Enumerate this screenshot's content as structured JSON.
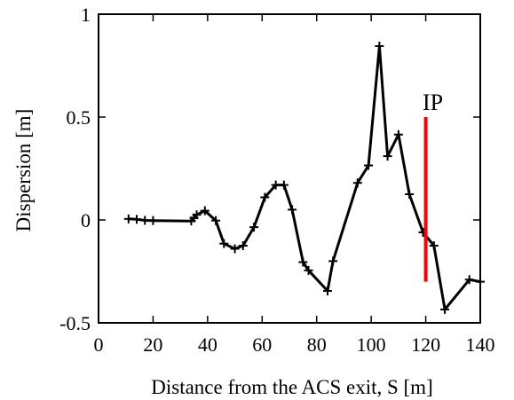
{
  "chart_data": {
    "type": "line",
    "xlabel": "Distance from the ACS exit, S [m]",
    "ylabel": "Dispersion [m]",
    "xlim": [
      0,
      140
    ],
    "ylim": [
      -0.5,
      1
    ],
    "xticks": [
      0,
      20,
      40,
      60,
      80,
      100,
      120,
      140
    ],
    "yticks": [
      -0.5,
      0,
      0.5,
      1
    ],
    "ytick_labels": [
      "-0.5",
      "0",
      "0.5",
      "1"
    ],
    "grid": false,
    "legend": "none",
    "series": [
      {
        "color": "#000000",
        "marker": "plus",
        "x": [
          11,
          14,
          17,
          20,
          34,
          35,
          36,
          39,
          43,
          46,
          50,
          53,
          57,
          61,
          65,
          68,
          71,
          75,
          77,
          84,
          86,
          95,
          99,
          103,
          106,
          110,
          114,
          119,
          123,
          127,
          136,
          140
        ],
        "y": [
          0.005,
          0.003,
          -0.002,
          -0.003,
          -0.005,
          0.01,
          0.025,
          0.045,
          -0.003,
          -0.115,
          -0.14,
          -0.125,
          -0.035,
          0.11,
          0.17,
          0.17,
          0.05,
          -0.205,
          -0.245,
          -0.345,
          -0.2,
          0.18,
          0.265,
          0.845,
          0.31,
          0.415,
          0.125,
          -0.06,
          -0.125,
          -0.435,
          -0.29,
          -0.3
        ]
      }
    ],
    "annotations": [
      {
        "text": "IP",
        "x": 120,
        "y_from": -0.3,
        "y_to": 0.5,
        "color": "#ff0000"
      }
    ]
  }
}
